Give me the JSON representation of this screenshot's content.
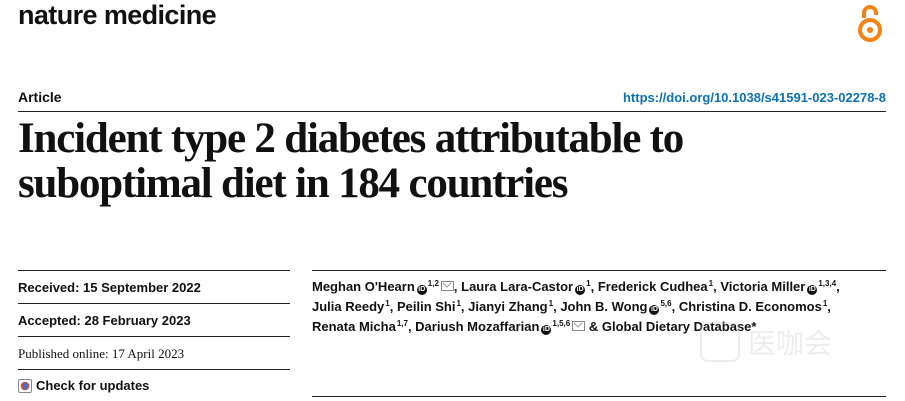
{
  "journal": "nature medicine",
  "icons": {
    "open_access": "open-access-lock-icon"
  },
  "article_type": "Article",
  "doi": "https://doi.org/10.1038/s41591-023-02278-8",
  "title_line1": "Incident type 2 diabetes attributable to",
  "title_line2": "suboptimal diet in 184 countries",
  "received": "Received: 15 September 2022",
  "accepted": "Accepted: 28 February 2023",
  "published": "Published online: 17 April 2023",
  "check_updates": "Check for updates",
  "authors": [
    {
      "name": "Meghan O'Hearn",
      "orcid": true,
      "aff": "1,2",
      "email": true,
      "sep": ", "
    },
    {
      "name": "Laura Lara-Castor",
      "orcid": true,
      "aff": "1",
      "email": false,
      "sep": ", "
    },
    {
      "name": "Frederick Cudhea",
      "orcid": false,
      "aff": "1",
      "email": false,
      "sep": ", "
    },
    {
      "name": "Victoria Miller",
      "orcid": true,
      "aff": "1,3,4",
      "email": false,
      "sep": ", "
    },
    {
      "name": "Julia Reedy",
      "orcid": false,
      "aff": "1",
      "email": false,
      "sep": ", "
    },
    {
      "name": "Peilin Shi",
      "orcid": false,
      "aff": "1",
      "email": false,
      "sep": ", "
    },
    {
      "name": "Jianyi Zhang",
      "orcid": false,
      "aff": "1",
      "email": false,
      "sep": ", "
    },
    {
      "name": "John B. Wong",
      "orcid": true,
      "aff": "5,6",
      "email": false,
      "sep": ", "
    },
    {
      "name": "Christina D. Economos",
      "orcid": false,
      "aff": "1",
      "email": false,
      "sep": ", "
    },
    {
      "name": "Renata Micha",
      "orcid": false,
      "aff": "1,7",
      "email": false,
      "sep": ", "
    },
    {
      "name": "Dariush Mozaffarian",
      "orcid": true,
      "aff": "1,5,6",
      "email": true,
      "sep": " & "
    },
    {
      "name": "Global Dietary Database*",
      "orcid": false,
      "aff": "",
      "email": false,
      "sep": ""
    }
  ],
  "watermark": "医咖会"
}
